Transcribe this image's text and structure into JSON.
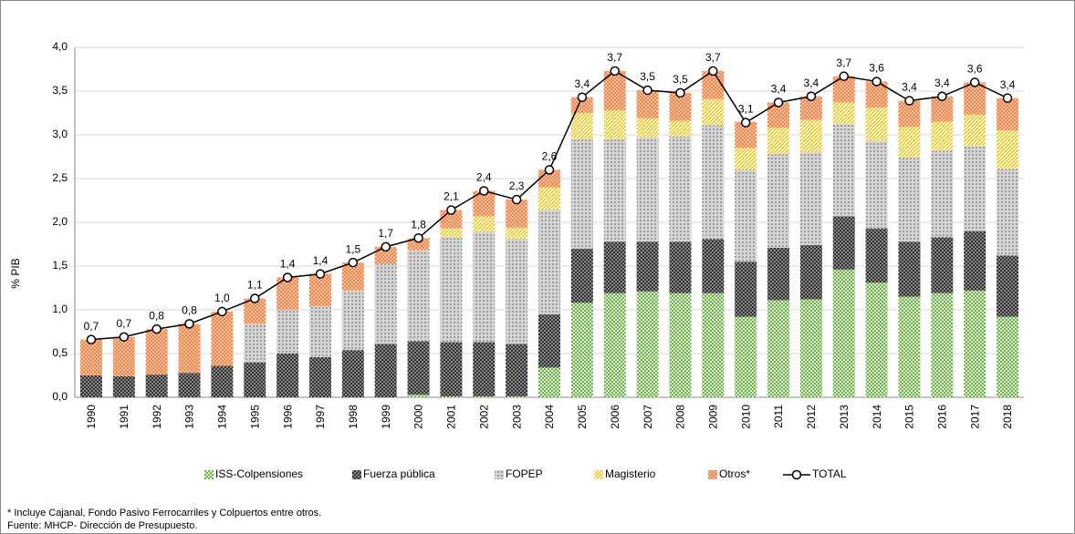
{
  "chart_data": {
    "type": "bar",
    "y_label": "% PIB",
    "categories": [
      "1990",
      "1991",
      "1992",
      "1993",
      "1994",
      "1995",
      "1996",
      "1997",
      "1998",
      "1999",
      "2000",
      "2001",
      "2002",
      "2003",
      "2004",
      "2005",
      "2006",
      "2007",
      "2008",
      "2009",
      "2010",
      "2011",
      "2012",
      "2013",
      "2014",
      "2015",
      "2016",
      "2017",
      "2018"
    ],
    "stacked": true,
    "series": [
      {
        "name": "ISS-Colpensiones",
        "color": "#70b050",
        "values": [
          0,
          0,
          0,
          0,
          0,
          0,
          0,
          0,
          0,
          0,
          0.03,
          0.01,
          0.01,
          0.01,
          0.34,
          1.08,
          1.19,
          1.21,
          1.19,
          1.19,
          0.92,
          1.11,
          1.12,
          1.46,
          1.31,
          1.15,
          1.19,
          1.22,
          0.92
        ]
      },
      {
        "name": "Fuerza pública",
        "color": "#303030",
        "values": [
          0.25,
          0.24,
          0.26,
          0.28,
          0.36,
          0.4,
          0.5,
          0.46,
          0.54,
          0.61,
          0.61,
          0.62,
          0.62,
          0.6,
          0.61,
          0.62,
          0.59,
          0.57,
          0.59,
          0.62,
          0.63,
          0.6,
          0.62,
          0.61,
          0.62,
          0.63,
          0.64,
          0.68,
          0.7
        ]
      },
      {
        "name": "FOPEP",
        "color": "#8c8c8c",
        "values": [
          0,
          0,
          0,
          0,
          0,
          0.44,
          0.5,
          0.58,
          0.68,
          0.92,
          1.04,
          1.2,
          1.26,
          1.2,
          1.19,
          1.25,
          1.17,
          1.19,
          1.2,
          1.3,
          1.05,
          1.07,
          1.06,
          1.05,
          1.0,
          0.96,
          0.99,
          0.97,
          0.99
        ]
      },
      {
        "name": "Magisterio",
        "color": "#e6b800",
        "values": [
          0,
          0,
          0,
          0,
          0,
          0,
          0,
          0,
          0,
          0,
          0,
          0.1,
          0.18,
          0.13,
          0.26,
          0.3,
          0.33,
          0.22,
          0.18,
          0.3,
          0.25,
          0.3,
          0.37,
          0.25,
          0.38,
          0.35,
          0.33,
          0.36,
          0.44
        ]
      },
      {
        "name": "Otros*",
        "color": "#f08040",
        "values": [
          0.41,
          0.45,
          0.52,
          0.56,
          0.62,
          0.29,
          0.37,
          0.37,
          0.32,
          0.19,
          0.14,
          0.21,
          0.29,
          0.32,
          0.2,
          0.18,
          0.45,
          0.32,
          0.32,
          0.32,
          0.3,
          0.29,
          0.27,
          0.3,
          0.3,
          0.3,
          0.29,
          0.37,
          0.37
        ]
      }
    ],
    "total": {
      "name": "TOTAL",
      "color": "#000000",
      "values": [
        0.66,
        0.69,
        0.78,
        0.84,
        0.98,
        1.13,
        1.37,
        1.41,
        1.54,
        1.72,
        1.82,
        2.14,
        2.36,
        2.26,
        2.6,
        3.43,
        3.73,
        3.51,
        3.48,
        3.73,
        3.14,
        3.37,
        3.44,
        3.67,
        3.61,
        3.39,
        3.44,
        3.6,
        3.42
      ],
      "value_labels": [
        "0,7",
        "0,7",
        "0,8",
        "0,8",
        "1,0",
        "1,1",
        "1,4",
        "1,4",
        "1,5",
        "1,7",
        "1,8",
        "2,1",
        "2,4",
        "2,3",
        "2,6",
        "3,4",
        "3,7",
        "3,5",
        "3,5",
        "3,7",
        "3,1",
        "3,4",
        "3,4",
        "3,7",
        "3,6",
        "3,4",
        "3,4",
        "3,6",
        "3,4"
      ]
    },
    "ylim": [
      0,
      4
    ],
    "yticks": [
      {
        "value": 0,
        "label": "0,0"
      },
      {
        "value": 0.5,
        "label": "0,5"
      },
      {
        "value": 1,
        "label": "1,0"
      },
      {
        "value": 1.5,
        "label": "1,5"
      },
      {
        "value": 2,
        "label": "2,0"
      },
      {
        "value": 2.5,
        "label": "2,5"
      },
      {
        "value": 3,
        "label": "3,0"
      },
      {
        "value": 3.5,
        "label": "3,5"
      },
      {
        "value": 4,
        "label": "4,0"
      }
    ],
    "grid": true,
    "legend": "bottom",
    "footnotes": [
      "* Incluye Cajanal, Fondo Pasivo Ferrocarriles y Colpuertos entre otros.",
      "Fuente: MHCP- Dirección de Presupuesto."
    ]
  }
}
